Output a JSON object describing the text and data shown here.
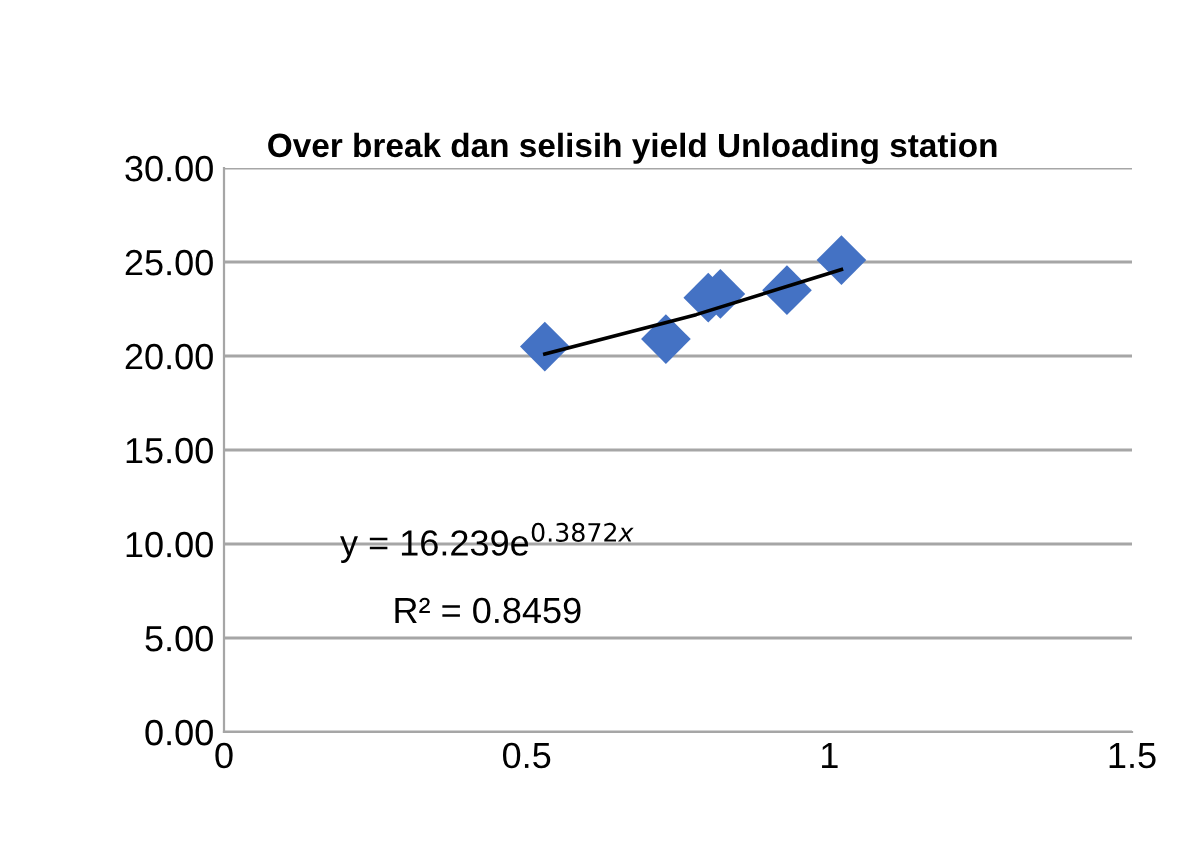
{
  "chart_data": {
    "type": "scatter",
    "title": "Over break dan selisih yield Unloading station",
    "series": [
      {
        "color": "#4472c4",
        "marker": "diamond",
        "x": [
          0.53,
          0.73,
          0.8,
          0.82,
          0.93,
          1.02
        ],
        "values": [
          20.5,
          20.9,
          23.1,
          23.3,
          23.5,
          25.1
        ]
      },
      {
        "type": "line",
        "color": "#000000",
        "marker": "none",
        "line_style": "solid",
        "x": [
          0.53,
          0.78,
          1.02
        ],
        "values": [
          20.1,
          22.2,
          24.6
        ]
      }
    ],
    "annotations": [
      "y = 16.239e$^{0.3872x}$",
      "R² = 0.8459"
    ],
    "xlim": [
      0,
      1.5
    ],
    "xticks": [
      0,
      0.5,
      1,
      1.5
    ],
    "ylim": [
      0,
      30
    ],
    "yticks": [
      {
        "value": 0,
        "label": "0.00"
      },
      {
        "value": 5,
        "label": "5.00"
      },
      {
        "value": 10,
        "label": "10.00"
      },
      {
        "value": 15,
        "label": "15.00"
      },
      {
        "value": 20,
        "label": "20.00"
      },
      {
        "value": 25,
        "label": "25.00"
      },
      {
        "value": 30,
        "label": "30.00"
      }
    ],
    "grid": "y",
    "legend": false
  }
}
